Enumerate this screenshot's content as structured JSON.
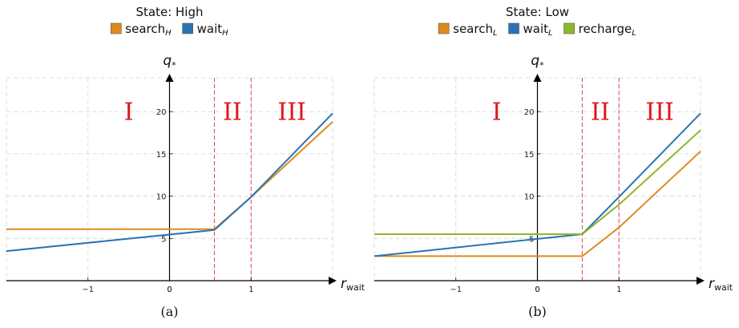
{
  "chart_data": [
    {
      "type": "line",
      "title": "State: High",
      "caption": "(a)",
      "xlabel": "r",
      "xlabel_sub": "wait",
      "ylabel": "q",
      "ylabel_sub": "*",
      "xlim": [
        -2,
        2
      ],
      "ylim": [
        0,
        24
      ],
      "xticks": [
        -1,
        0,
        1
      ],
      "yticks": [
        5,
        10,
        15,
        20
      ],
      "grid": true,
      "legend_position": "top-center",
      "regions": [
        {
          "label": "I",
          "x": -0.5
        },
        {
          "label": "II",
          "x": 0.77
        },
        {
          "label": "III",
          "x": 1.5
        }
      ],
      "boundaries": [
        0.55,
        1.0
      ],
      "series": [
        {
          "name": "search",
          "sub": "H",
          "color": "#e08a1e",
          "x": [
            -2,
            0.55,
            1.0,
            2.0
          ],
          "y": [
            6.1,
            6.1,
            9.9,
            18.8
          ]
        },
        {
          "name": "wait",
          "sub": "H",
          "color": "#2b73b3",
          "x": [
            -2,
            0.55,
            1.0,
            2.0
          ],
          "y": [
            3.5,
            6.0,
            9.9,
            19.8
          ]
        }
      ]
    },
    {
      "type": "line",
      "title": "State: Low",
      "caption": "(b)",
      "xlabel": "r",
      "xlabel_sub": "wait",
      "ylabel": "q",
      "ylabel_sub": "*",
      "xlim": [
        -2,
        2
      ],
      "ylim": [
        0,
        24
      ],
      "xticks": [
        -1,
        0,
        1
      ],
      "yticks": [
        5,
        10,
        15,
        20
      ],
      "grid": true,
      "legend_position": "top-center",
      "regions": [
        {
          "label": "I",
          "x": -0.5
        },
        {
          "label": "II",
          "x": 0.77
        },
        {
          "label": "III",
          "x": 1.5
        }
      ],
      "boundaries": [
        0.55,
        1.0
      ],
      "series": [
        {
          "name": "search",
          "sub": "L",
          "color": "#e08a1e",
          "x": [
            -2,
            0.55,
            1.0,
            2.0
          ],
          "y": [
            2.9,
            2.9,
            6.3,
            15.3
          ]
        },
        {
          "name": "wait",
          "sub": "L",
          "color": "#2b73b3",
          "x": [
            -2,
            0.55,
            1.0,
            2.0
          ],
          "y": [
            2.9,
            5.5,
            9.9,
            19.8
          ]
        },
        {
          "name": "recharge",
          "sub": "L",
          "color": "#8db82a",
          "x": [
            -2,
            0.55,
            1.0,
            2.0
          ],
          "y": [
            5.5,
            5.5,
            9.0,
            17.8
          ]
        }
      ]
    }
  ]
}
